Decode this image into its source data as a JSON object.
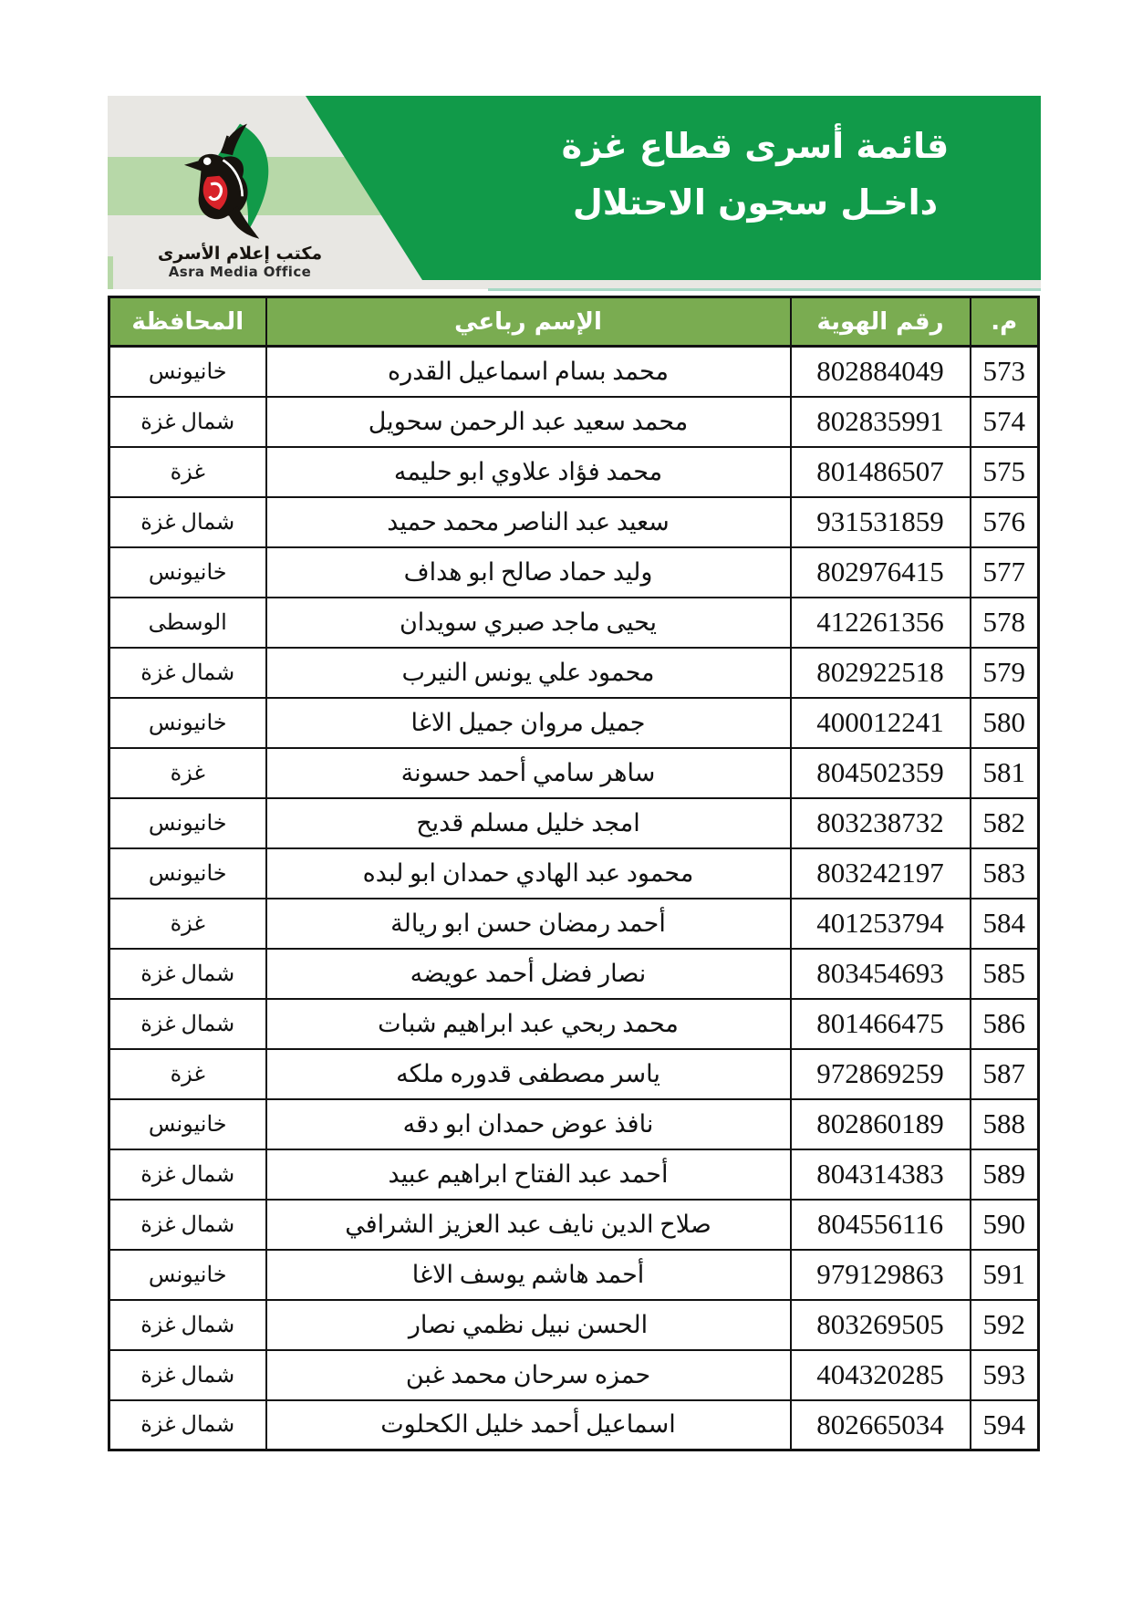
{
  "header": {
    "title_line1": "قائمة أسرى قطاع غزة",
    "title_line2": "داخـل سجون الاحتلال",
    "logo": {
      "icon": "asra-bird-logo-icon",
      "name_ar": "مكتب إعلام الأسرى",
      "name_en": "Asra Media Office"
    },
    "colors": {
      "banner_green": "#119A49",
      "light_green_band": "#B7D8A8",
      "panel_gray": "#E8E7E3",
      "accent_line": "#A7D8C5",
      "table_header_green": "#7AAC51",
      "logo_red": "#D8232A",
      "logo_black": "#17130E"
    }
  },
  "table": {
    "columns": [
      {
        "key": "index",
        "label": "م."
      },
      {
        "key": "id_number",
        "label": "رقم الهوية"
      },
      {
        "key": "name",
        "label": "الإسم رباعي"
      },
      {
        "key": "governorate",
        "label": "المحافظة"
      }
    ],
    "rows": [
      {
        "index": "573",
        "id_number": "802884049",
        "name": "محمد بسام اسماعيل القدره",
        "governorate": "خانيونس"
      },
      {
        "index": "574",
        "id_number": "802835991",
        "name": "محمد سعيد عبد الرحمن سحويل",
        "governorate": "شمال غزة"
      },
      {
        "index": "575",
        "id_number": "801486507",
        "name": "محمد فؤاد علاوي ابو حليمه",
        "governorate": "غزة"
      },
      {
        "index": "576",
        "id_number": "931531859",
        "name": "سعيد عبد الناصر محمد حميد",
        "governorate": "شمال غزة"
      },
      {
        "index": "577",
        "id_number": "802976415",
        "name": "وليد حماد صالح ابو هداف",
        "governorate": "خانيونس"
      },
      {
        "index": "578",
        "id_number": "412261356",
        "name": "يحيى ماجد صبري سويدان",
        "governorate": "الوسطى"
      },
      {
        "index": "579",
        "id_number": "802922518",
        "name": "محمود علي يونس النيرب",
        "governorate": "شمال غزة"
      },
      {
        "index": "580",
        "id_number": "400012241",
        "name": "جميل مروان جميل الاغا",
        "governorate": "خانيونس"
      },
      {
        "index": "581",
        "id_number": "804502359",
        "name": "ساهر سامي أحمد حسونة",
        "governorate": "غزة"
      },
      {
        "index": "582",
        "id_number": "803238732",
        "name": "امجد خليل مسلم قديح",
        "governorate": "خانيونس"
      },
      {
        "index": "583",
        "id_number": "803242197",
        "name": "محمود عبد الهادي حمدان ابو لبده",
        "governorate": "خانيونس"
      },
      {
        "index": "584",
        "id_number": "401253794",
        "name": "أحمد رمضان حسن ابو ريالة",
        "governorate": "غزة"
      },
      {
        "index": "585",
        "id_number": "803454693",
        "name": "نصار فضل أحمد عويضه",
        "governorate": "شمال غزة"
      },
      {
        "index": "586",
        "id_number": "801466475",
        "name": "محمد ربحي عبد ابراهيم شبات",
        "governorate": "شمال غزة"
      },
      {
        "index": "587",
        "id_number": "972869259",
        "name": "ياسر مصطفى قدوره ملكه",
        "governorate": "غزة"
      },
      {
        "index": "588",
        "id_number": "802860189",
        "name": "نافذ عوض حمدان ابو دقه",
        "governorate": "خانيونس"
      },
      {
        "index": "589",
        "id_number": "804314383",
        "name": "أحمد عبد الفتاح ابراهيم عبيد",
        "governorate": "شمال غزة"
      },
      {
        "index": "590",
        "id_number": "804556116",
        "name": "صلاح الدين نايف عبد العزيز الشرافي",
        "governorate": "شمال غزة"
      },
      {
        "index": "591",
        "id_number": "979129863",
        "name": "أحمد هاشم يوسف الاغا",
        "governorate": "خانيونس"
      },
      {
        "index": "592",
        "id_number": "803269505",
        "name": "الحسن نبيل نظمي نصار",
        "governorate": "شمال غزة"
      },
      {
        "index": "593",
        "id_number": "404320285",
        "name": "حمزه سرحان محمد غبن",
        "governorate": "شمال غزة"
      },
      {
        "index": "594",
        "id_number": "802665034",
        "name": "اسماعيل أحمد خليل الكحلوت",
        "governorate": "شمال غزة"
      }
    ]
  }
}
